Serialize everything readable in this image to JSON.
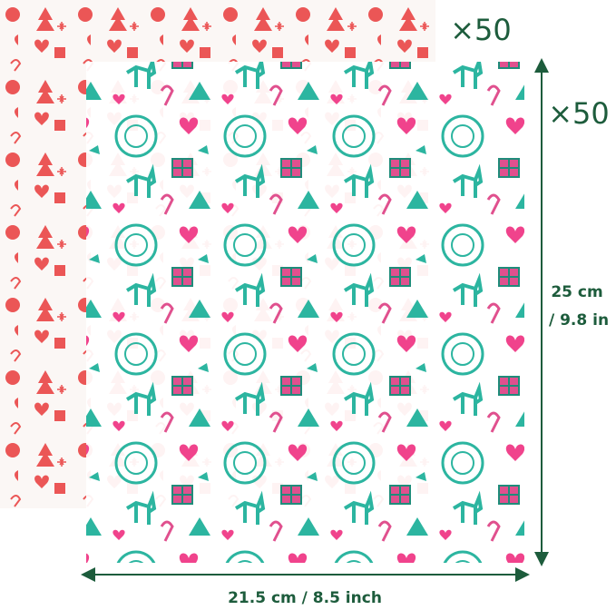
{
  "labels": {
    "back_count": "×50",
    "front_count": "×50",
    "height_cm": "25 cm",
    "height_in": "/ 9.8 in",
    "width": "21.5 cm / 8.5 inch"
  }
}
